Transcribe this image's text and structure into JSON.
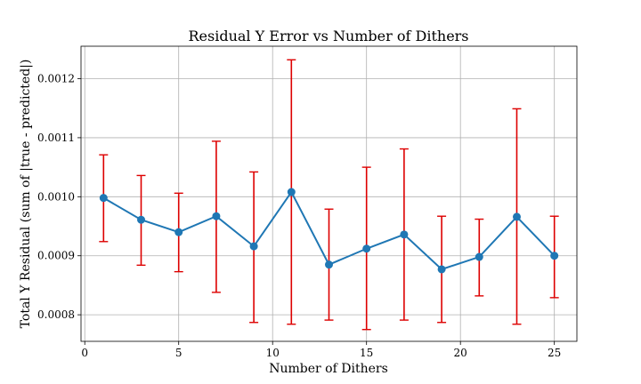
{
  "chart_data": {
    "type": "line",
    "title": "Residual Y Error vs Number of Dithers",
    "xlabel": "Number of Dithers",
    "ylabel": "Total Y Residual (sum of |true - predicted|)",
    "x": [
      1,
      3,
      5,
      7,
      9,
      11,
      13,
      15,
      17,
      19,
      21,
      23,
      25
    ],
    "series": [
      {
        "values": [
          0.000998,
          0.000961,
          0.00094,
          0.000967,
          0.000916,
          0.001008,
          0.000885,
          0.000912,
          0.000936,
          0.000877,
          0.000898,
          0.000966,
          0.0009
        ],
        "err_low": [
          0.000924,
          0.000884,
          0.000873,
          0.000838,
          0.000787,
          0.000784,
          0.000791,
          0.000775,
          0.000791,
          0.000787,
          0.000832,
          0.000784,
          0.000829
        ],
        "err_high": [
          0.001071,
          0.001036,
          0.001006,
          0.001094,
          0.001042,
          0.001232,
          0.000979,
          0.00105,
          0.001081,
          0.000967,
          0.000962,
          0.001149,
          0.000967
        ],
        "line_color": "#1f77b4",
        "errorbar_color": "#dd0000"
      }
    ],
    "xlim": [
      -0.2,
      26.2
    ],
    "ylim": [
      0.000755,
      0.001255
    ],
    "xticks": [
      0,
      5,
      10,
      15,
      20,
      25
    ],
    "xtick_labels": [
      "0",
      "5",
      "10",
      "15",
      "20",
      "25"
    ],
    "yticks": [
      0.0008,
      0.0009,
      0.001,
      0.0011,
      0.0012
    ],
    "ytick_labels": [
      "0.0008",
      "0.0009",
      "0.0010",
      "0.0011",
      "0.0012"
    ],
    "grid": true
  }
}
